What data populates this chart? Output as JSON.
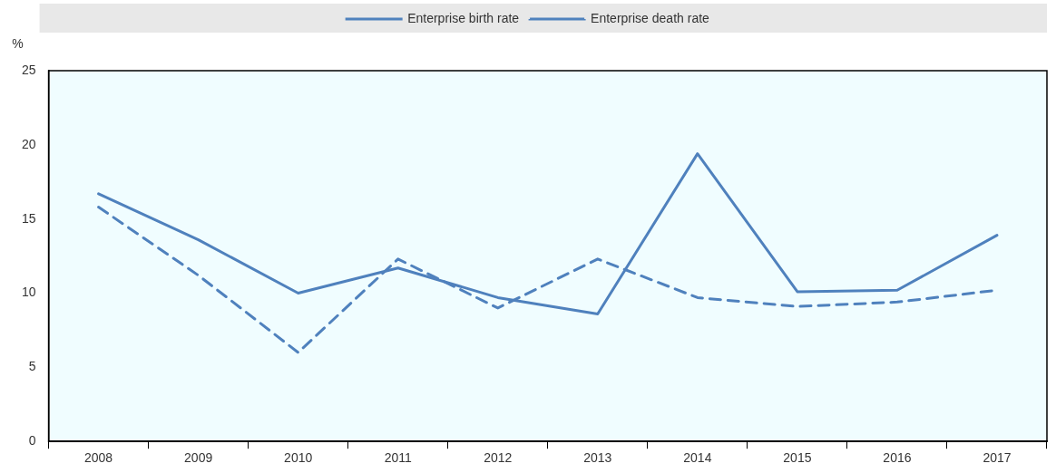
{
  "chart_data": {
    "type": "line",
    "ylabel": "%",
    "categories": [
      "2008",
      "2009",
      "2010",
      "2011",
      "2012",
      "2013",
      "2014",
      "2015",
      "2016",
      "2017"
    ],
    "series": [
      {
        "name": "Enterprise birth rate",
        "color": "#4f81bd",
        "line_style": "solid",
        "values": [
          16.7,
          13.6,
          10.0,
          11.7,
          9.7,
          8.6,
          19.4,
          10.1,
          10.2,
          13.9
        ]
      },
      {
        "name": "Enterprise death rate",
        "color": "#4f81bd",
        "line_style": "dashed",
        "values": [
          15.8,
          11.2,
          6.0,
          12.3,
          9.0,
          12.3,
          9.7,
          9.1,
          9.4,
          10.2
        ]
      }
    ],
    "ylim": [
      0,
      25
    ],
    "yticks": [
      0,
      5,
      10,
      15,
      20,
      25
    ],
    "grid": false,
    "legend": "top",
    "marker": "none"
  }
}
